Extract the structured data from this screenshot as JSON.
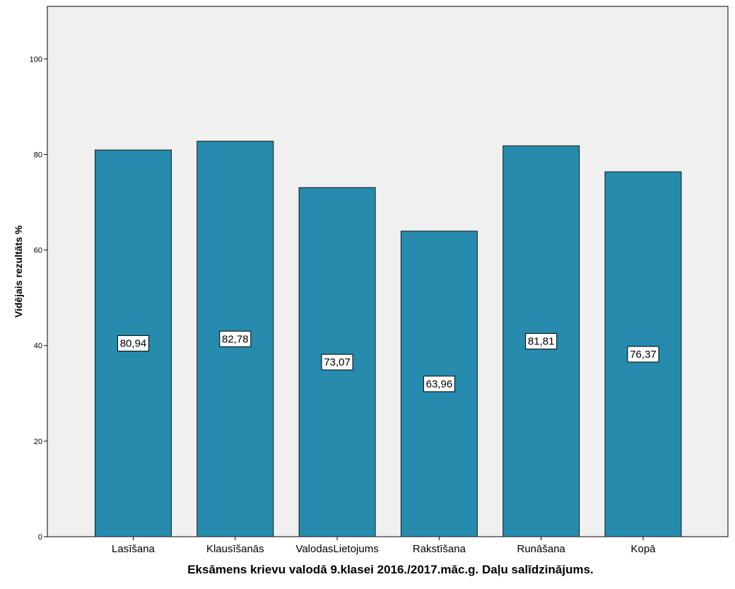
{
  "chart_data": {
    "type": "bar",
    "title": "Eksāmens krievu valodā 9.klasei 2016./2017.māc.g. Daļu salīdzinājums.",
    "xlabel": "",
    "ylabel": "Vidējais rezultāts %",
    "categories": [
      "Lasīšana",
      "Klausīšanās",
      "ValodasLietojums",
      "Rakstīšana",
      "Runāšana",
      "Kopā"
    ],
    "values": [
      80.94,
      82.78,
      73.07,
      63.96,
      81.81,
      76.37
    ],
    "value_labels": [
      "80,94",
      "82,78",
      "73,07",
      "63,96",
      "81,81",
      "76,37"
    ],
    "ylim": [
      0,
      111
    ],
    "yticks": [
      0,
      20,
      40,
      60,
      80,
      100
    ],
    "grid": false,
    "legend": "none",
    "colors": {
      "bar": "#268BAD",
      "bar_stroke": "#1a1a1a",
      "plot_background": "#F0F0F0",
      "label_box": "#FFFFFF"
    }
  }
}
